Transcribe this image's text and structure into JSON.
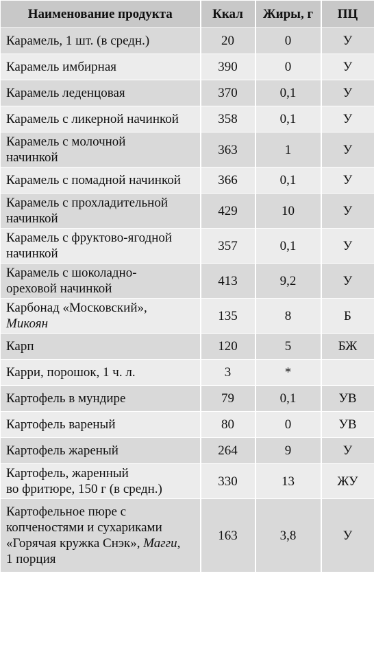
{
  "headers": {
    "name": "Наименование продукта",
    "kcal": "Ккал",
    "fat": "Жиры, г",
    "pc": "ПЦ"
  },
  "rows": [
    {
      "name": "Карамель, 1 шт. (в средн.)",
      "kcal": "20",
      "fat": "0",
      "pc": "У"
    },
    {
      "name": "Карамель имбирная",
      "kcal": "390",
      "fat": "0",
      "pc": "У"
    },
    {
      "name": "Карамель леденцовая",
      "kcal": "370",
      "fat": "0,1",
      "pc": "У"
    },
    {
      "name": "Карамель с ликерной начинкой",
      "kcal": "358",
      "fat": "0,1",
      "pc": "У"
    },
    {
      "name_l1": "Карамель с молочной",
      "name_l2": "начинкой",
      "kcal": "363",
      "fat": "1",
      "pc": "У"
    },
    {
      "name": "Карамель с помадной начинкой",
      "kcal": "366",
      "fat": "0,1",
      "pc": "У"
    },
    {
      "name_l1": "Карамель с прохладительной",
      "name_l2": "начинкой",
      "kcal": "429",
      "fat": "10",
      "pc": "У"
    },
    {
      "name_l1": "Карамель с фруктово-ягодной",
      "name_l2": "начинкой",
      "kcal": "357",
      "fat": "0,1",
      "pc": "У"
    },
    {
      "name_l1": "Карамель с шоколадно-",
      "name_l2": "ореховой начинкой",
      "kcal": "413",
      "fat": "9,2",
      "pc": "У"
    },
    {
      "name_l1": "Карбонад «Московский»,",
      "name_l2_italic": "Микоян",
      "kcal": "135",
      "fat": "8",
      "pc": "Б"
    },
    {
      "name": "Карп",
      "kcal": "120",
      "fat": "5",
      "pc": "БЖ"
    },
    {
      "name": "Карри, порошок, 1 ч. л.",
      "kcal": "3",
      "fat": "*",
      "pc": ""
    },
    {
      "name": "Картофель в мундире",
      "kcal": "79",
      "fat": "0,1",
      "pc": "УВ"
    },
    {
      "name": "Картофель вареный",
      "kcal": "80",
      "fat": "0",
      "pc": "УВ"
    },
    {
      "name": "Картофель жареный",
      "kcal": "264",
      "fat": "9",
      "pc": "У"
    },
    {
      "name_l1": "Картофель, жаренный",
      "name_l2": "во фритюре, 150 г (в средн.)",
      "kcal": "330",
      "fat": "13",
      "pc": "ЖУ"
    },
    {
      "name_l1": "Картофельное пюре с",
      "name_l2": "копченостями и сухариками",
      "name_l3": "«Горячая кружка Снэк»,",
      "name_l3_italic": "Магги,",
      "name_l4": "1 порция",
      "kcal": "163",
      "fat": "3,8",
      "pc": "У"
    }
  ]
}
